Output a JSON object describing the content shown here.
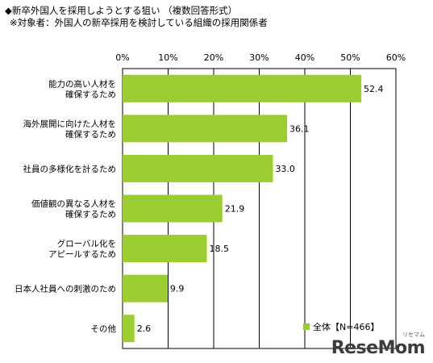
{
  "title": "◆新卒外国人を採用しようとする狙い （複数回答形式）",
  "subtitle": "※対象者：外国人の新卒採用を検討している組織の採用関係者",
  "chart_data": {
    "type": "bar",
    "orientation": "horizontal",
    "categories": [
      [
        "能力の高い人材を",
        "確保するため"
      ],
      [
        "海外展開に向けた人材を",
        "確保するため"
      ],
      [
        "社員の多様化を計るため"
      ],
      [
        "価値観の異なる人材を",
        "確保するため"
      ],
      [
        "グローバル化を",
        "アピールするため"
      ],
      [
        "日本人社員への刺激のため"
      ],
      [
        "その他"
      ]
    ],
    "series": [
      {
        "name": "全体【N=466】",
        "values": [
          52.4,
          36.1,
          33.0,
          21.9,
          18.5,
          9.9,
          2.6
        ]
      }
    ],
    "xlim": [
      0,
      60
    ],
    "xticks": [
      "0%",
      "10%",
      "20%",
      "30%",
      "40%",
      "50%",
      "60%"
    ],
    "xtick_values": [
      0,
      10,
      20,
      30,
      40,
      50,
      60
    ],
    "data_labels": [
      "52.4",
      "36.1",
      "33.0",
      "21.9",
      "18.5",
      "9.9",
      "2.6"
    ],
    "grid": true,
    "legend_position": "bottom-right",
    "bar_color": "#9ACD32"
  },
  "logo": {
    "text": "ReseMom",
    "sub": "リセマム"
  }
}
